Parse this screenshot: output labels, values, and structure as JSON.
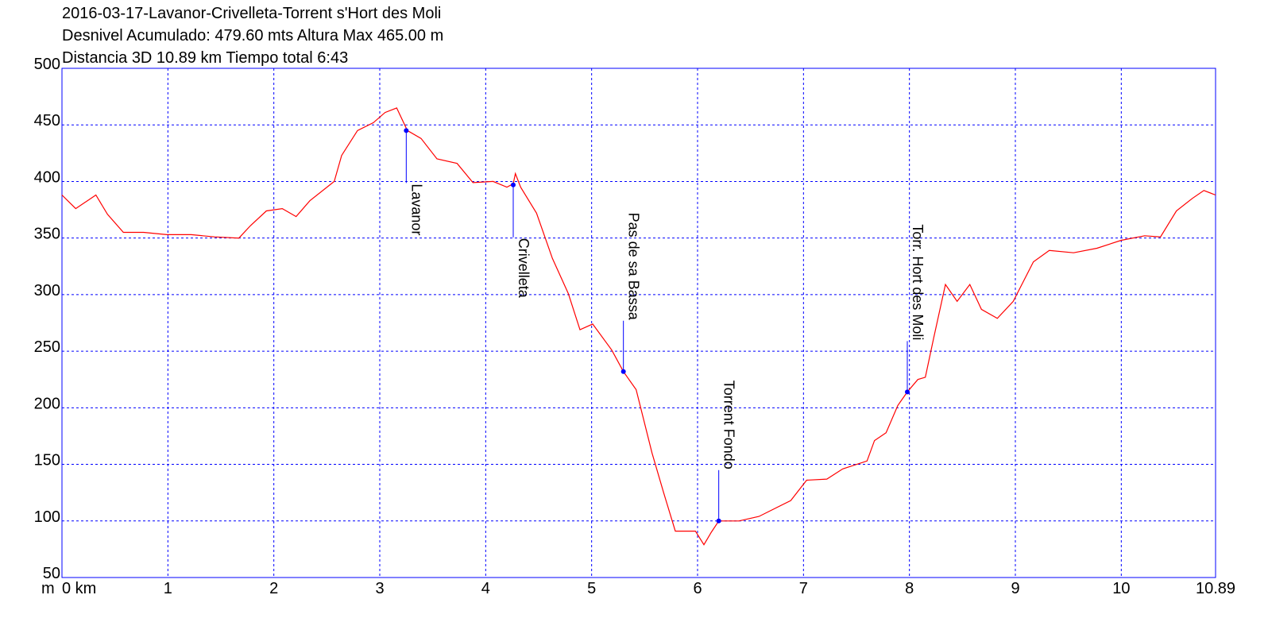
{
  "chart_data": {
    "type": "line",
    "title_lines": [
      "2016-03-17-Lavanor-Crivelleta-Torrent s'Hort des Moli",
      "Desnivel Acumulado: 479.60 mts  Altura Max 465.00 m",
      "Distancia 3D 10.89 km  Tiempo total 6:43"
    ],
    "ylabel": "m",
    "x": [
      0,
      0.13,
      0.24,
      0.32,
      0.43,
      0.58,
      0.77,
      0.99,
      1.22,
      1.44,
      1.67,
      1.78,
      1.93,
      2.08,
      2.21,
      2.34,
      2.57,
      2.64,
      2.79,
      2.94,
      3.05,
      3.16,
      3.26,
      3.39,
      3.54,
      3.73,
      3.88,
      4.07,
      4.2,
      4.26,
      4.28,
      4.33,
      4.48,
      4.63,
      4.78,
      4.89,
      5.01,
      5.19,
      5.3,
      5.42,
      5.57,
      5.68,
      5.79,
      5.98,
      6.06,
      6.13,
      6.2,
      6.39,
      6.58,
      6.88,
      7.03,
      7.22,
      7.37,
      7.6,
      7.67,
      7.78,
      7.89,
      7.98,
      8.08,
      8.15,
      8.23,
      8.34,
      8.45,
      8.57,
      8.68,
      8.83,
      8.98,
      9.17,
      9.32,
      9.55,
      9.77,
      10.0,
      10.22,
      10.37,
      10.52,
      10.67,
      10.78,
      10.89
    ],
    "series": [
      {
        "color": "#ff0000",
        "values": [
          388,
          376,
          383,
          388,
          371,
          355,
          355,
          353,
          353,
          351,
          350,
          361,
          374,
          376,
          369,
          383,
          400,
          423,
          445,
          452,
          461,
          465,
          445,
          438,
          420,
          416,
          399,
          400,
          395,
          398,
          407,
          395,
          372,
          332,
          301,
          269,
          274,
          251,
          232,
          216,
          160,
          125,
          91,
          91,
          79,
          90,
          100,
          100,
          104,
          118,
          136,
          137,
          146,
          153,
          171,
          178,
          202,
          214,
          225,
          227,
          262,
          309,
          294,
          309,
          287,
          279,
          294,
          329,
          339,
          337,
          341,
          348,
          352,
          351,
          374,
          385,
          392,
          388
        ]
      }
    ],
    "waypoints": [
      {
        "name": "Lavanor",
        "x": 3.25,
        "elevation": 445
      },
      {
        "name": "Crivelleta",
        "x": 4.26,
        "elevation": 397
      },
      {
        "name": "Pas de sa Bassa",
        "x": 5.3,
        "elevation": 232
      },
      {
        "name": "Torrent Fondo",
        "x": 6.2,
        "elevation": 100
      },
      {
        "name": "Torr. Hort des Moli",
        "x": 7.98,
        "elevation": 214
      }
    ],
    "waypoint_color": "#0000ff",
    "xlim": [
      0,
      10.89
    ],
    "xticks": [
      {
        "value": 0,
        "label": "0 km"
      },
      1,
      2,
      3,
      4,
      5,
      6,
      7,
      8,
      9,
      10,
      10.89
    ],
    "ylim": [
      50,
      500
    ],
    "yticks": [
      50,
      100,
      150,
      200,
      250,
      300,
      350,
      400,
      450,
      500
    ],
    "grid": true,
    "grid_color": "#0000ff"
  }
}
